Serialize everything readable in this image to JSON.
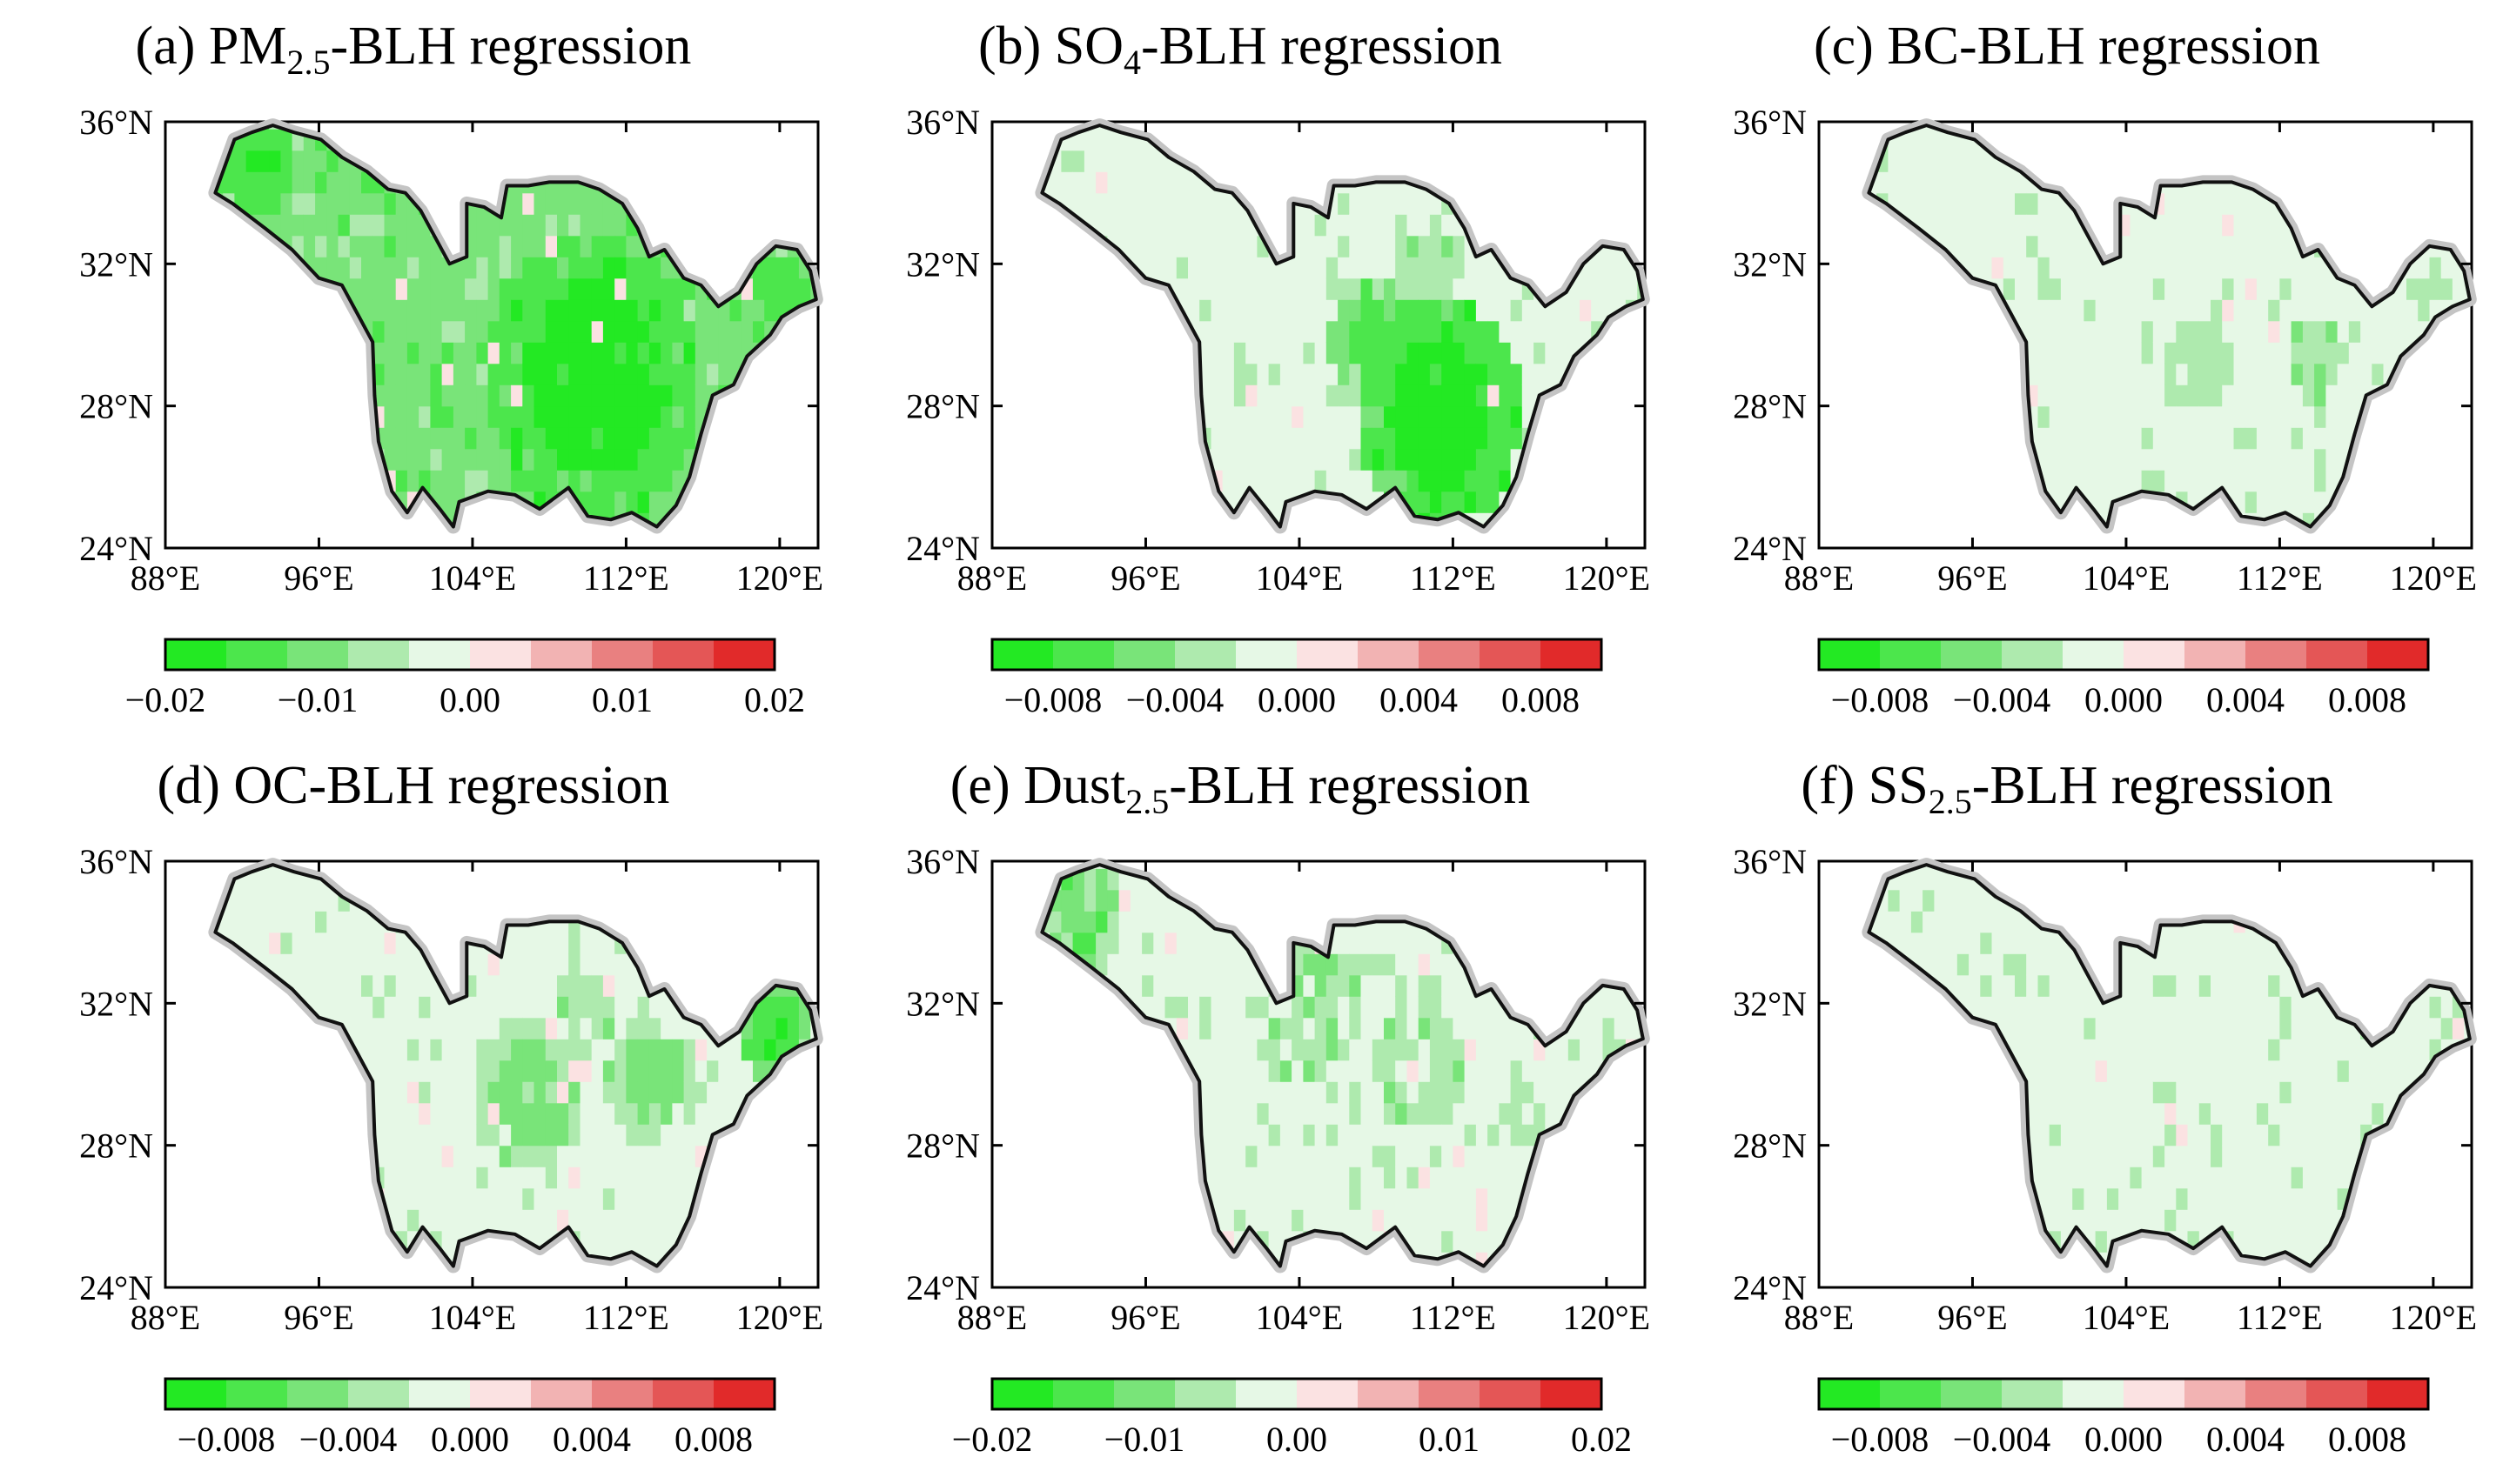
{
  "figure": {
    "panels": [
      {
        "id": "a",
        "title_prefix": "(a) PM",
        "title_sub": "2.5",
        "title_suffix": "-BLH regression",
        "cbar": {
          "labels": [
            "−0.02",
            "−0.01",
            "0.00",
            "0.01",
            "0.02"
          ],
          "label_values": [
            -0.02,
            -0.01,
            0.0,
            0.01,
            0.02
          ],
          "min": -0.02,
          "max": 0.02
        }
      },
      {
        "id": "b",
        "title_prefix": "(b) SO",
        "title_sub": "4",
        "title_suffix": "-BLH regression",
        "cbar": {
          "labels": [
            "−0.008",
            "−0.004",
            "0.000",
            "0.004",
            "0.008"
          ],
          "label_values": [
            -0.008,
            -0.004,
            0.0,
            0.004,
            0.008
          ],
          "min": -0.01,
          "max": 0.01
        }
      },
      {
        "id": "c",
        "title_prefix": "(c) BC-BLH regression",
        "title_sub": "",
        "title_suffix": "",
        "cbar": {
          "labels": [
            "−0.008",
            "−0.004",
            "0.000",
            "0.004",
            "0.008"
          ],
          "label_values": [
            -0.008,
            -0.004,
            0.0,
            0.004,
            0.008
          ],
          "min": -0.01,
          "max": 0.01
        }
      },
      {
        "id": "d",
        "title_prefix": "(d) OC-BLH regression",
        "title_sub": "",
        "title_suffix": "",
        "cbar": {
          "labels": [
            "−0.008",
            "−0.004",
            "0.000",
            "0.004",
            "0.008"
          ],
          "label_values": [
            -0.008,
            -0.004,
            0.0,
            0.004,
            0.008
          ],
          "min": -0.01,
          "max": 0.01
        }
      },
      {
        "id": "e",
        "title_prefix": "(e) Dust",
        "title_sub": "2.5",
        "title_suffix": "-BLH regression",
        "cbar": {
          "labels": [
            "−0.02",
            "−0.01",
            "0.00",
            "0.01",
            "0.02"
          ],
          "label_values": [
            -0.02,
            -0.01,
            0.0,
            0.01,
            0.02
          ],
          "min": -0.02,
          "max": 0.02
        }
      },
      {
        "id": "f",
        "title_prefix": "(f) SS",
        "title_sub": "2.5",
        "title_suffix": "-BLH regression",
        "cbar": {
          "labels": [
            "−0.008",
            "−0.004",
            "0.000",
            "0.004",
            "0.008"
          ],
          "label_values": [
            -0.008,
            -0.004,
            0.0,
            0.004,
            0.008
          ],
          "min": -0.01,
          "max": 0.01
        }
      }
    ]
  },
  "chart_data": {
    "type": "heatmap",
    "map_type": "filled contour maps of regression coefficients over the Yangtze River basin",
    "x_range_deg_e": [
      88,
      122
    ],
    "y_range_deg_n": [
      24,
      36
    ],
    "x_ticks": [
      "88°E",
      "96°E",
      "104°E",
      "112°E",
      "120°E"
    ],
    "y_ticks": [
      "24°N",
      "28°N",
      "32°N",
      "36°N"
    ],
    "x_tick_values": [
      88,
      96,
      104,
      112,
      120
    ],
    "y_tick_values": [
      24,
      28,
      32,
      36
    ],
    "colorbar_colors": [
      "#23e923",
      "#4ce64c",
      "#79e479",
      "#aeeaae",
      "#e6f8e6",
      "#fbe2e2",
      "#f2b3b3",
      "#e98080",
      "#e45656",
      "#e12a2a"
    ],
    "intensity_levels": [
      "#23e923",
      "#4ce64c",
      "#79e479",
      "#aeeaae",
      "#e6f8e6"
    ],
    "boundary_color": "#111111",
    "boundary_halo_color": "#c4c4c4",
    "basin_outline_lonlat": [
      [
        91.0,
        34.6
      ],
      [
        90.6,
        34.0
      ],
      [
        91.5,
        33.7
      ],
      [
        93.2,
        33.0
      ],
      [
        94.6,
        32.4
      ],
      [
        96.0,
        31.6
      ],
      [
        97.2,
        31.4
      ],
      [
        98.0,
        30.6
      ],
      [
        98.8,
        29.8
      ],
      [
        98.9,
        28.3
      ],
      [
        99.1,
        27.0
      ],
      [
        99.8,
        25.6
      ],
      [
        100.6,
        25.0
      ],
      [
        101.4,
        25.7
      ],
      [
        102.3,
        25.1
      ],
      [
        103.0,
        24.6
      ],
      [
        103.3,
        25.3
      ],
      [
        104.8,
        25.6
      ],
      [
        106.2,
        25.5
      ],
      [
        107.5,
        25.1
      ],
      [
        109.0,
        25.7
      ],
      [
        110.0,
        24.9
      ],
      [
        111.2,
        24.8
      ],
      [
        112.3,
        25.0
      ],
      [
        113.6,
        24.6
      ],
      [
        114.6,
        25.2
      ],
      [
        115.3,
        26.0
      ],
      [
        115.9,
        27.2
      ],
      [
        116.5,
        28.3
      ],
      [
        117.6,
        28.6
      ],
      [
        118.3,
        29.4
      ],
      [
        119.5,
        30.0
      ],
      [
        120.1,
        30.5
      ],
      [
        121.0,
        30.8
      ],
      [
        121.9,
        31.0
      ],
      [
        121.6,
        31.8
      ],
      [
        120.9,
        32.4
      ],
      [
        119.8,
        32.5
      ],
      [
        118.8,
        32.0
      ],
      [
        117.9,
        31.2
      ],
      [
        116.8,
        30.8
      ],
      [
        115.9,
        31.4
      ],
      [
        115.0,
        31.6
      ],
      [
        114.0,
        32.4
      ],
      [
        113.2,
        32.2
      ],
      [
        112.6,
        33.0
      ],
      [
        111.8,
        33.7
      ],
      [
        110.6,
        34.1
      ],
      [
        109.5,
        34.3
      ],
      [
        108.0,
        34.3
      ],
      [
        106.9,
        34.2
      ],
      [
        105.8,
        34.2
      ],
      [
        105.5,
        33.3
      ],
      [
        104.6,
        33.6
      ],
      [
        103.7,
        33.7
      ],
      [
        103.7,
        32.2
      ],
      [
        102.8,
        32.0
      ],
      [
        102.0,
        32.8
      ],
      [
        101.3,
        33.5
      ],
      [
        100.5,
        34.0
      ],
      [
        99.6,
        34.1
      ],
      [
        98.5,
        34.6
      ],
      [
        97.2,
        35.0
      ],
      [
        96.1,
        35.5
      ],
      [
        94.7,
        35.7
      ],
      [
        93.6,
        35.9
      ],
      [
        92.5,
        35.7
      ],
      [
        91.6,
        35.5
      ],
      [
        91.0,
        34.6
      ]
    ],
    "panels": [
      {
        "id": "a",
        "variable": "PM2.5",
        "colorbar_range": [
          -0.02,
          0.02
        ],
        "pattern": "strong negative (dark green) over central and eastern basin (~106-116°E, 25-31°N); moderate negative elsewhere",
        "regions": [
          {
            "lon": 110.0,
            "lat": 28.5,
            "radius": 5.5,
            "level": 0
          },
          {
            "lon": 104.5,
            "lat": 29.0,
            "radius": 2.6,
            "level": 2
          },
          {
            "lon": 119.5,
            "lat": 31.0,
            "radius": 2.5,
            "level": 1
          },
          {
            "lon": 92.5,
            "lat": 34.5,
            "radius": 3.0,
            "level": 1
          },
          {
            "lon": 100.5,
            "lat": 30.0,
            "radius": 3.5,
            "level": 2
          }
        ],
        "base_level": 2
      },
      {
        "id": "b",
        "variable": "SO4",
        "colorbar_range": [
          -0.01,
          0.01
        ],
        "pattern": "strong negative over middle-lower reaches (~107-116°E, 25-30°N); near zero in upper basin",
        "regions": [
          {
            "lon": 111.0,
            "lat": 27.5,
            "radius": 4.3,
            "level": 0
          },
          {
            "lon": 107.5,
            "lat": 29.5,
            "radius": 2.2,
            "level": 1
          },
          {
            "lon": 110.5,
            "lat": 31.5,
            "radius": 3.0,
            "level": 3
          }
        ],
        "base_level": 4
      },
      {
        "id": "c",
        "variable": "BC",
        "colorbar_range": [
          -0.01,
          0.01
        ],
        "pattern": "weak negative (light green) over Sichuan basin and middle reaches; near zero elsewhere",
        "regions": [
          {
            "lon": 107.5,
            "lat": 29.0,
            "radius": 2.8,
            "level": 3
          },
          {
            "lon": 113.5,
            "lat": 29.0,
            "radius": 2.5,
            "level": 3
          },
          {
            "lon": 119.5,
            "lat": 31.0,
            "radius": 1.8,
            "level": 3
          }
        ],
        "base_level": 4
      },
      {
        "id": "d",
        "variable": "OC",
        "colorbar_range": [
          -0.01,
          0.01
        ],
        "pattern": "moderate negative over Sichuan basin and east; near zero in west",
        "regions": [
          {
            "lon": 106.5,
            "lat": 29.2,
            "radius": 2.8,
            "level": 2
          },
          {
            "lon": 113.0,
            "lat": 29.5,
            "radius": 2.4,
            "level": 2
          },
          {
            "lon": 119.5,
            "lat": 31.0,
            "radius": 2.0,
            "level": 1
          },
          {
            "lon": 109.5,
            "lat": 31.5,
            "radius": 2.5,
            "level": 3
          }
        ],
        "base_level": 4
      },
      {
        "id": "e",
        "variable": "Dust2.5",
        "colorbar_range": [
          -0.02,
          0.02
        ],
        "pattern": "weak-to-moderate negative over northern and central basin, streaky",
        "regions": [
          {
            "lon": 92.5,
            "lat": 34.5,
            "radius": 2.5,
            "level": 2
          },
          {
            "lon": 104.0,
            "lat": 31.5,
            "radius": 4.5,
            "level": 3
          },
          {
            "lon": 110.0,
            "lat": 30.0,
            "radius": 4.0,
            "level": 3
          },
          {
            "lon": 115.5,
            "lat": 28.5,
            "radius": 1.8,
            "level": 3
          }
        ],
        "base_level": 4
      },
      {
        "id": "f",
        "variable": "SS2.5",
        "colorbar_range": [
          -0.01,
          0.01
        ],
        "pattern": "near zero everywhere with a few faint positive pixels",
        "regions": [],
        "base_level": 4
      }
    ]
  }
}
